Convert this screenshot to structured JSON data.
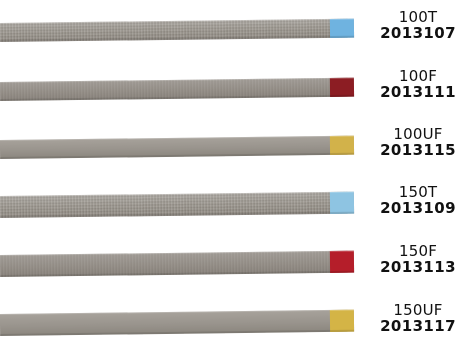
{
  "products": [
    {
      "grade": "100T",
      "sku": "2013107",
      "tab_color": "#6fb3e0"
    },
    {
      "grade": "100F",
      "sku": "2013111",
      "tab_color": "#8c1d23"
    },
    {
      "grade": "100UF",
      "sku": "2013115",
      "tab_color": "#d2b24a"
    },
    {
      "grade": "150T",
      "sku": "2013109",
      "tab_color": "#8ec4e2"
    },
    {
      "grade": "150F",
      "sku": "2013113",
      "tab_color": "#b51e2a"
    },
    {
      "grade": "150UF",
      "sku": "2013117",
      "tab_color": "#d4b446"
    }
  ]
}
